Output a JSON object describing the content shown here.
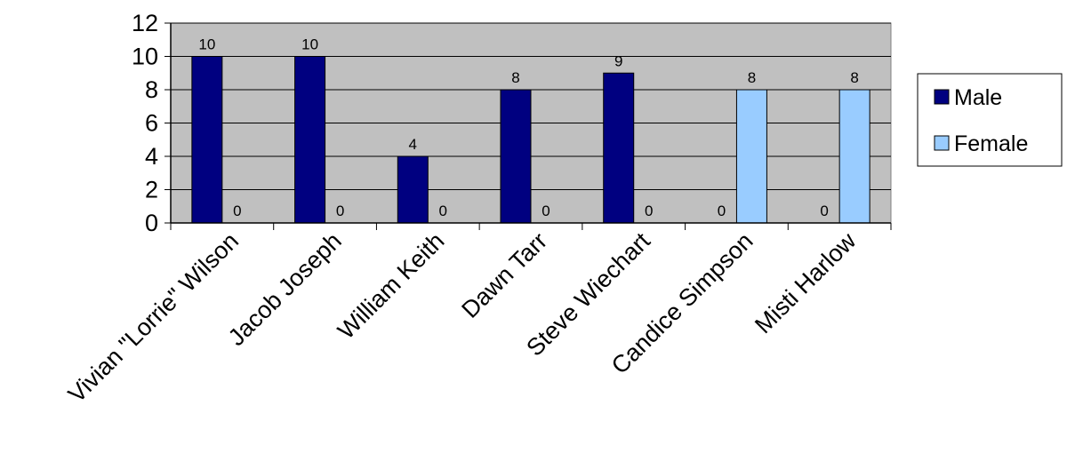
{
  "chart_data": {
    "type": "bar",
    "categories": [
      "Vivian \"Lorrie\" Wilson",
      "Jacob Joseph",
      "William Keith",
      "Dawn Tarr",
      "Steve Wiechart",
      "Candice Simpson",
      "Misti Harlow"
    ],
    "series": [
      {
        "name": "Male",
        "values": [
          10,
          10,
          4,
          8,
          9,
          0,
          0
        ],
        "color": "#000080"
      },
      {
        "name": "Female",
        "values": [
          0,
          0,
          0,
          0,
          0,
          8,
          8
        ],
        "color": "#99ccff"
      }
    ],
    "title": "",
    "xlabel": "",
    "ylabel": "",
    "ylim": [
      0,
      12
    ],
    "yticks": [
      0,
      2,
      4,
      6,
      8,
      10,
      12
    ],
    "grid": true,
    "legend": "right",
    "plot_background": "#c0c0c0"
  }
}
